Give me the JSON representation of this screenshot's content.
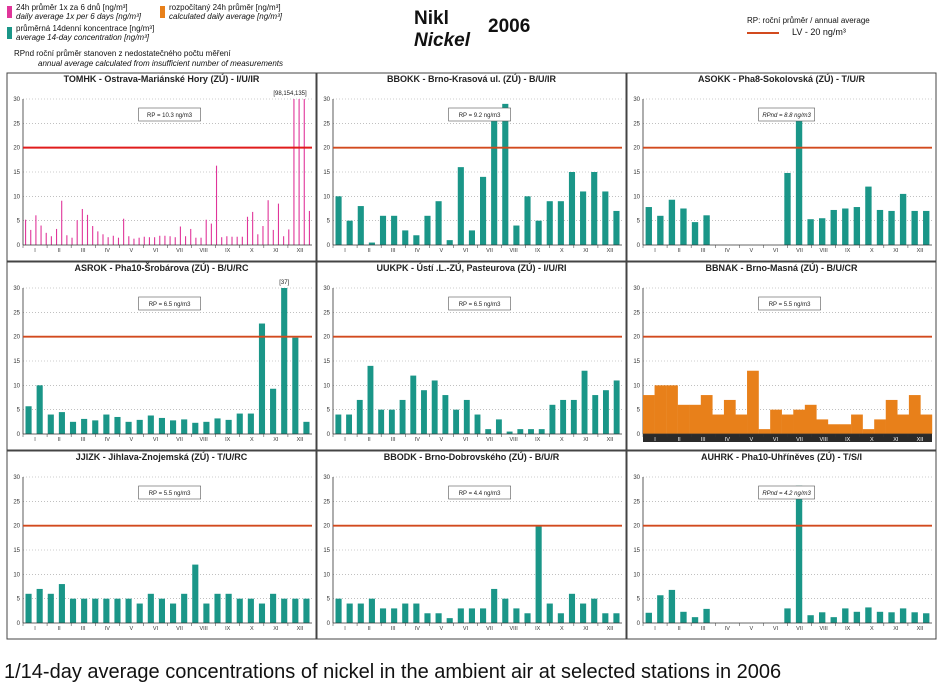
{
  "header": {
    "legend": [
      {
        "text": "24h průměr 1x za 6 dnů [ng/m³]",
        "italic": false,
        "color": "#e0359a"
      },
      {
        "text": "daily average 1x per 6 days [ng/m³]",
        "italic": true
      },
      {
        "text": "rozpočítaný 24h průměr [ng/m³]",
        "italic": false,
        "color": "#e8801a"
      },
      {
        "text": "calculated daily average [ng/m³]",
        "italic": true
      },
      {
        "text": "průměrná 14denní koncentrace [ng/m³]",
        "italic": false,
        "color": "#1a9688"
      },
      {
        "text": "average 14-day concentration [ng/m³]",
        "italic": true
      },
      {
        "text": "RPnd  roční průměr stanoven z nedostatečného počtu měření",
        "italic": false
      },
      {
        "text": "annual average calculated from insufficient number of measurements",
        "italic": true
      }
    ],
    "title_cz": "Nikl",
    "title_en": "Nickel",
    "year": "2006",
    "rp_legend_title": "RP: roční průměr / annual average",
    "rp_legend_label": "LV   - 20 ng/m³"
  },
  "caption": "1/14-day average concentrations of nickel in the ambient air at selected stations in 2006",
  "colors": {
    "teal": "#1a9688",
    "pink": "#e0359a",
    "orange": "#e8801a",
    "lv": "#d24a1e",
    "lv_top": "#e01c1c"
  },
  "chart_data": [
    {
      "type": "bar",
      "title": "TOMHK - Ostrava-Mariánské Hory (ZÚ) - I/U/IR",
      "style": "pink",
      "rp_label": "RP = 10.3 ng/m3",
      "annotation": "[98,154,135]",
      "months": [
        "I",
        "II",
        "III",
        "IV",
        "V",
        "VI",
        "VII",
        "VIII",
        "IX",
        "X",
        "XI",
        "XII"
      ],
      "ylim": [
        0,
        30
      ],
      "yticks": [
        0,
        5,
        10,
        15,
        20,
        25,
        30
      ],
      "limit": 20,
      "values": [
        5.2,
        3.1,
        6.1,
        4.0,
        2.5,
        1.8,
        3.3,
        9.1,
        2.0,
        1.5,
        5.1,
        7.4,
        6.2,
        3.9,
        2.8,
        2.2,
        1.6,
        1.9,
        1.5,
        5.4,
        1.8,
        1.3,
        1.5,
        1.7,
        1.6,
        1.6,
        1.9,
        1.9,
        1.8,
        1.6,
        3.8,
        1.8,
        3.3,
        1.5,
        1.5,
        5.2,
        4.4,
        16.3,
        1.6,
        1.8,
        1.7,
        1.7,
        1.7,
        5.8,
        6.8,
        2.2,
        3.9,
        9.2,
        3.1,
        8.5,
        1.8,
        3.2,
        30,
        30,
        30,
        7.0
      ]
    },
    {
      "type": "bar",
      "title": "BBOKK - Brno-Krasová ul. (ZÚ) - B/U/IR",
      "style": "teal",
      "rp_label": "RP = 9.2 ng/m3",
      "months": [
        "I",
        "II",
        "III",
        "IV",
        "V",
        "VI",
        "VII",
        "VIII",
        "IX",
        "X",
        "XI",
        "XII"
      ],
      "ylim": [
        0,
        30
      ],
      "yticks": [
        0,
        5,
        10,
        15,
        20,
        25,
        30
      ],
      "limit": 20,
      "values": [
        10,
        5,
        8,
        0.5,
        6,
        6,
        3,
        2,
        6,
        9,
        1,
        16,
        3,
        14,
        26,
        29,
        4,
        10,
        5,
        9,
        9,
        15,
        11,
        15,
        11,
        7
      ]
    },
    {
      "type": "bar",
      "title": "ASOKK - Pha8-Sokolovská (ZÚ) - T/U/R",
      "style": "teal",
      "rp_label": "RPnd = 8.8 ng/m3",
      "rp_italic": true,
      "months": [
        "I",
        "II",
        "III",
        "IV",
        "V",
        "VI",
        "VII",
        "VIII",
        "IX",
        "X",
        "XI",
        "XII"
      ],
      "ylim": [
        0,
        30
      ],
      "yticks": [
        0,
        5,
        10,
        15,
        20,
        25,
        30
      ],
      "limit": 20,
      "values": [
        7.8,
        6.0,
        9.3,
        7.5,
        4.7,
        6.1,
        null,
        null,
        null,
        null,
        null,
        null,
        14.8,
        26.5,
        5.3,
        5.5,
        7.2,
        7.5,
        7.8,
        12,
        7.2,
        7.0,
        10.5,
        7.0,
        7.0
      ]
    },
    {
      "type": "bar",
      "title": "ASROK - Pha10-Šrobárova (ZÚ) - B/U/RC",
      "style": "teal",
      "rp_label": "RP = 6.5 ng/m3",
      "annotation": "[37]",
      "months": [
        "I",
        "II",
        "III",
        "IV",
        "V",
        "VI",
        "VII",
        "VIII",
        "IX",
        "X",
        "XI",
        "XII"
      ],
      "ylim": [
        0,
        30
      ],
      "yticks": [
        0,
        5,
        10,
        15,
        20,
        25,
        30
      ],
      "limit": 20,
      "values": [
        5.7,
        10,
        4,
        4.5,
        2.5,
        3.1,
        2.8,
        4,
        3.5,
        2.5,
        2.9,
        3.8,
        3.3,
        2.8,
        3,
        2.3,
        2.5,
        3.2,
        2.9,
        4.2,
        4.2,
        22.7,
        9.3,
        30,
        19.8,
        2.5
      ]
    },
    {
      "type": "bar",
      "title": "UUKPK - Ústí .L.-ZÚ, Pasteurova (ZÚ) - I/U/RI",
      "style": "teal",
      "rp_label": "RP = 6.5 ng/m3",
      "months": [
        "I",
        "II",
        "III",
        "IV",
        "V",
        "VI",
        "VII",
        "VIII",
        "IX",
        "X",
        "XI",
        "XII"
      ],
      "ylim": [
        0,
        30
      ],
      "yticks": [
        0,
        5,
        10,
        15,
        20,
        25,
        30
      ],
      "limit": 20,
      "values": [
        4,
        4,
        7,
        14,
        5,
        5,
        7,
        12,
        9,
        11,
        8,
        5,
        7,
        4,
        1,
        3,
        0.5,
        1,
        1,
        1,
        6,
        7,
        7,
        13,
        8,
        9,
        11
      ]
    },
    {
      "type": "bar",
      "title": "BBNAK - Brno-Masná (ZÚ) - B/U/CR",
      "style": "orange",
      "rp_label": "RP = 5.5 ng/m3",
      "months": [
        "I",
        "II",
        "III",
        "IV",
        "V",
        "VI",
        "VII",
        "VIII",
        "IX",
        "X",
        "XI",
        "XII"
      ],
      "ylim": [
        0,
        30
      ],
      "yticks": [
        0,
        5,
        10,
        15,
        20,
        25,
        30
      ],
      "limit": 20,
      "values": [
        8,
        10,
        10,
        6,
        6,
        8,
        4,
        7,
        4,
        13,
        1,
        5,
        4,
        5,
        6,
        3,
        2,
        2,
        4,
        1,
        3,
        7,
        4,
        8,
        4
      ]
    },
    {
      "type": "bar",
      "title": "JJIZK - Jihlava-Znojemská (ZÚ) - T/U/RC",
      "style": "teal",
      "rp_label": "RP = 5.5 ng/m3",
      "months": [
        "I",
        "II",
        "III",
        "IV",
        "V",
        "VI",
        "VII",
        "VIII",
        "IX",
        "X",
        "XI",
        "XII"
      ],
      "ylim": [
        0,
        30
      ],
      "yticks": [
        0,
        5,
        10,
        15,
        20,
        25,
        30
      ],
      "limit": 20,
      "values": [
        6,
        7,
        6,
        8,
        5,
        5,
        5,
        5,
        5,
        5,
        4,
        6,
        5,
        4,
        6,
        12,
        4,
        6,
        6,
        5,
        5,
        4,
        6,
        5,
        5,
        5
      ]
    },
    {
      "type": "bar",
      "title": "BBODK - Brno-Dobrovského (ZÚ) - B/U/R",
      "style": "teal",
      "rp_label": "RP = 4.4 ng/m3",
      "months": [
        "I",
        "II",
        "III",
        "IV",
        "V",
        "VI",
        "VII",
        "VIII",
        "IX",
        "X",
        "XI",
        "XII"
      ],
      "ylim": [
        0,
        30
      ],
      "yticks": [
        0,
        5,
        10,
        15,
        20,
        25,
        30
      ],
      "limit": 20,
      "values": [
        5,
        4,
        4,
        5,
        3,
        3,
        4,
        4,
        2,
        2,
        1,
        3,
        3,
        3,
        7,
        5,
        3,
        2,
        20,
        4,
        2,
        6,
        4,
        5,
        2,
        2
      ]
    },
    {
      "type": "bar",
      "title": "AUHRK - Pha10-Uhříněves (ZÚ) - T/S/I",
      "style": "teal",
      "rp_label": "RPnd = 4.2 ng/m3",
      "rp_italic": true,
      "months": [
        "I",
        "II",
        "III",
        "IV",
        "V",
        "VI",
        "VII",
        "VIII",
        "IX",
        "X",
        "XI",
        "XII"
      ],
      "ylim": [
        0,
        30
      ],
      "yticks": [
        0,
        5,
        10,
        15,
        20,
        25,
        30
      ],
      "limit": 20,
      "values": [
        2.1,
        5.7,
        6.8,
        2.3,
        1.2,
        2.9,
        null,
        null,
        null,
        null,
        null,
        null,
        3.0,
        28.2,
        1.6,
        2.2,
        1.2,
        3.0,
        2.3,
        3.2,
        2.3,
        2.2,
        3.0,
        2.2,
        2.0
      ]
    }
  ]
}
